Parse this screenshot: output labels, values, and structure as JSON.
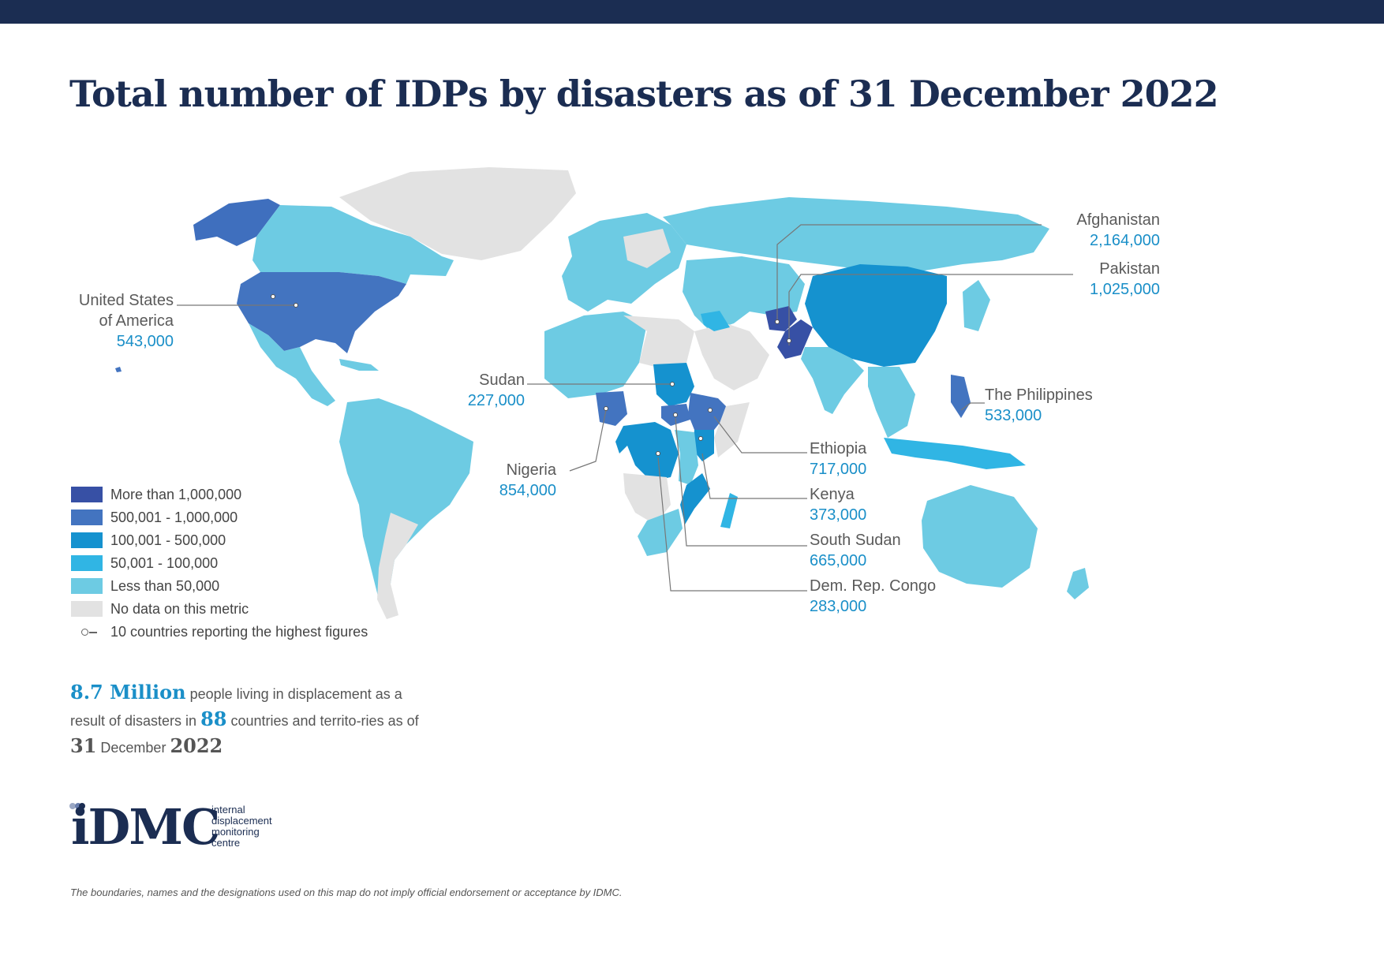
{
  "header": {
    "title": "Total number of IDPs by disasters as of 31 December 2022",
    "bar_color": "#1b2d52"
  },
  "colors": {
    "more_1m": "#3750a5",
    "500k_1m": "#4374c0",
    "100k_500k": "#1592cf",
    "50k_100k": "#30b5e4",
    "lt_50k": "#6dcbe3",
    "no_data": "#e2e2e2"
  },
  "legend": {
    "items": [
      {
        "label": "More than 1,000,000",
        "color": "#3750a5"
      },
      {
        "label": "500,001 - 1,000,000",
        "color": "#4374c0"
      },
      {
        "label": "100,001 - 500,000",
        "color": "#1592cf"
      },
      {
        "label": "50,001 - 100,000",
        "color": "#30b5e4"
      },
      {
        "label": "Less than 50,000",
        "color": "#6dcbe3"
      },
      {
        "label": "No data on this metric",
        "color": "#e2e2e2"
      }
    ],
    "top10_label": "10 countries reporting the highest figures"
  },
  "callouts": {
    "usa": {
      "name_line1": "United States",
      "name_line2": "of America",
      "value": "543,000"
    },
    "afghanistan": {
      "name": "Afghanistan",
      "value": "2,164,000"
    },
    "pakistan": {
      "name": "Pakistan",
      "value": "1,025,000"
    },
    "sudan": {
      "name": "Sudan",
      "value": "227,000"
    },
    "philippines": {
      "name": "The Philippines",
      "value": "533,000"
    },
    "nigeria": {
      "name": "Nigeria",
      "value": "854,000"
    },
    "ethiopia": {
      "name": "Ethiopia",
      "value": "717,000"
    },
    "kenya": {
      "name": "Kenya",
      "value": "373,000"
    },
    "south_sudan": {
      "name": "South Sudan",
      "value": "665,000"
    },
    "drc": {
      "name": "Dem. Rep. Congo",
      "value": "283,000"
    }
  },
  "summary": {
    "total": "8.7 Million",
    "text1": " people living in displacement as a result of disasters in ",
    "countries": "88",
    "text2": " countries and territo-ries as of ",
    "day": "31",
    "text3": " December ",
    "year": "2022"
  },
  "logo": {
    "wordmark": "iDMC",
    "line1": "internal",
    "line2": "displacement",
    "line3": "monitoring",
    "line4": "centre"
  },
  "disclaimer": "The boundaries, names and the designations used on this map do not imply official endorsement or acceptance by IDMC."
}
